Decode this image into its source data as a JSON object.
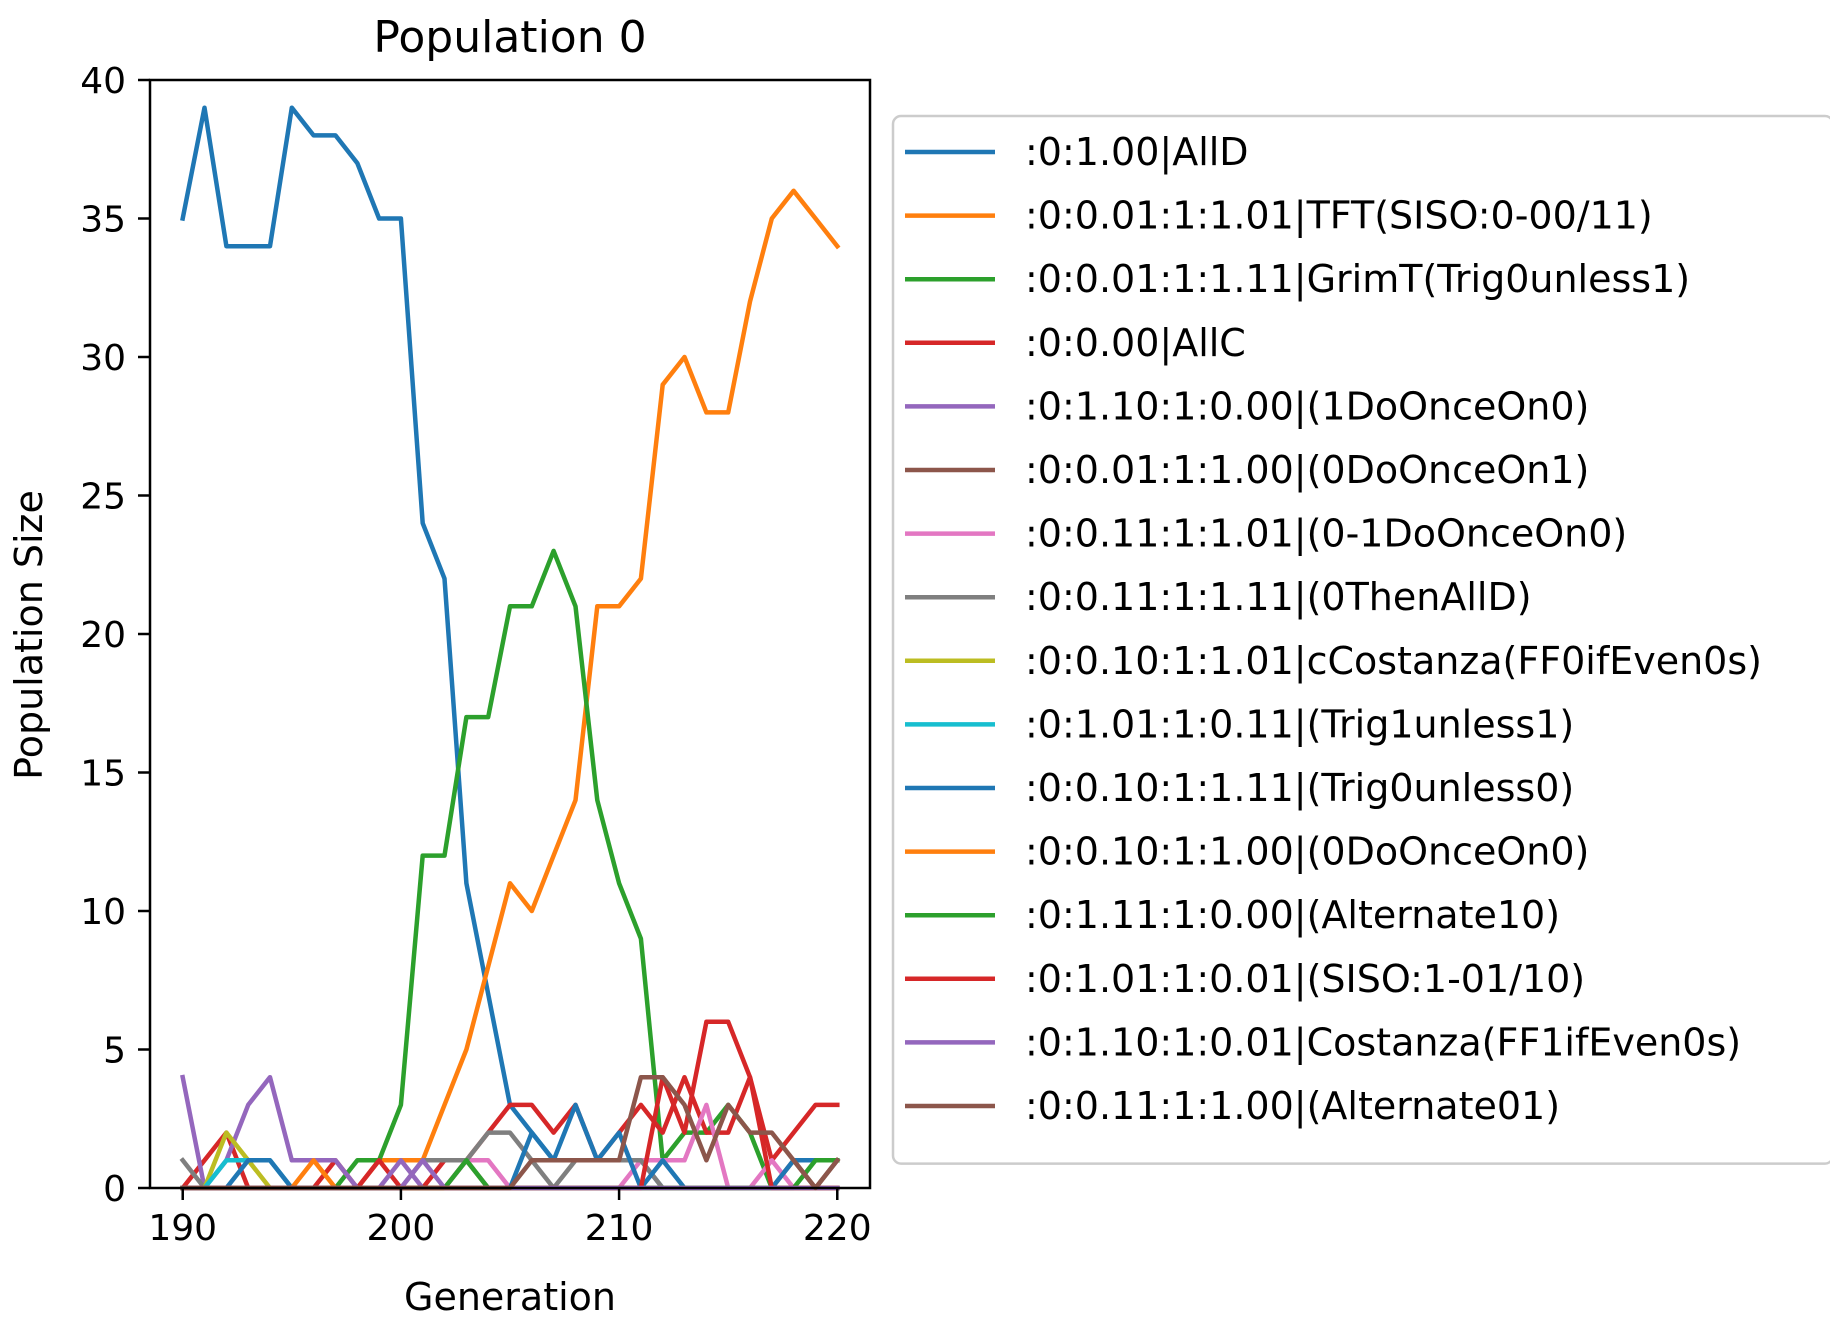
{
  "chart_data": {
    "type": "line",
    "title": "Population 0",
    "xlabel": "Generation",
    "ylabel": "Population Size",
    "xlim": [
      188.5,
      221.5
    ],
    "ylim": [
      0,
      40
    ],
    "xticks": [
      "190",
      "200",
      "210",
      "220"
    ],
    "yticks": [
      "0",
      "5",
      "10",
      "15",
      "20",
      "25",
      "30",
      "35",
      "40"
    ],
    "legend_position": "outside-right",
    "grid": false,
    "x": [
      190,
      191,
      192,
      193,
      194,
      195,
      196,
      197,
      198,
      199,
      200,
      201,
      202,
      203,
      204,
      205,
      206,
      207,
      208,
      209,
      210,
      211,
      212,
      213,
      214,
      215,
      216,
      217,
      218,
      219,
      220
    ],
    "series": [
      {
        "name": ":0:1.00|AllD",
        "color": "#1f77b4",
        "values": [
          35,
          39,
          34,
          34,
          34,
          39,
          38,
          38,
          37,
          35,
          35,
          24,
          22,
          11,
          7,
          3,
          2,
          1,
          1,
          1,
          1,
          1,
          0,
          0,
          0,
          0,
          0,
          0,
          0,
          0,
          0
        ]
      },
      {
        "name": ":0:0.01:1:1.01|TFT(SISO:0-00/11)",
        "color": "#ff7f0e",
        "values": [
          0,
          0,
          0,
          0,
          0,
          0,
          0,
          0,
          0,
          1,
          1,
          1,
          3,
          5,
          8,
          11,
          10,
          12,
          14,
          21,
          21,
          22,
          29,
          30,
          28,
          28,
          32,
          35,
          36,
          35,
          34
        ]
      },
      {
        "name": ":0:0.01:1:1.11|GrimT(Trig0unless1)",
        "color": "#2ca02c",
        "values": [
          0,
          0,
          0,
          0,
          0,
          0,
          0,
          0,
          1,
          1,
          3,
          12,
          12,
          17,
          17,
          21,
          21,
          23,
          21,
          14,
          11,
          9,
          1,
          2,
          2,
          3,
          2,
          0,
          0,
          0,
          0
        ]
      },
      {
        "name": ":0:0.00|AllC",
        "color": "#d62728",
        "values": [
          0,
          1,
          2,
          0,
          0,
          0,
          0,
          1,
          0,
          1,
          0,
          0,
          1,
          1,
          2,
          3,
          3,
          2,
          3,
          1,
          2,
          3,
          2,
          4,
          2,
          2,
          4,
          1,
          2,
          3,
          3
        ]
      },
      {
        "name": ":0:1.10:1:0.00|(1DoOnceOn0)",
        "color": "#9467bd",
        "values": [
          4,
          0,
          1,
          3,
          4,
          1,
          1,
          1,
          0,
          0,
          1,
          0,
          0,
          0,
          0,
          0,
          0,
          0,
          0,
          0,
          0,
          0,
          0,
          0,
          0,
          0,
          0,
          0,
          0,
          0,
          0
        ]
      },
      {
        "name": ":0:0.01:1:1.00|(0DoOnceOn1)",
        "color": "#8c564b",
        "values": [
          0,
          0,
          0,
          0,
          0,
          0,
          0,
          0,
          0,
          0,
          0,
          0,
          0,
          1,
          0,
          0,
          0,
          0,
          0,
          0,
          0,
          0,
          0,
          0,
          0,
          0,
          0,
          0,
          1,
          0,
          1
        ]
      },
      {
        "name": ":0:0.11:1:1.01|(0-1DoOnceOn0)",
        "color": "#e377c2",
        "values": [
          0,
          0,
          0,
          0,
          0,
          0,
          0,
          0,
          0,
          0,
          0,
          0,
          0,
          1,
          1,
          0,
          0,
          0,
          0,
          0,
          0,
          1,
          1,
          1,
          3,
          0,
          0,
          1,
          0,
          0,
          0
        ]
      },
      {
        "name": ":0:0.11:1:1.11|(0ThenAllD)",
        "color": "#7f7f7f",
        "values": [
          1,
          0,
          0,
          0,
          0,
          0,
          0,
          0,
          0,
          0,
          0,
          1,
          1,
          1,
          2,
          2,
          1,
          0,
          1,
          1,
          1,
          1,
          0,
          0,
          0,
          0,
          0,
          0,
          0,
          0,
          0
        ]
      },
      {
        "name": ":0:0.10:1:1.01|cCostanza(FF0ifEven0s)",
        "color": "#bcbd22",
        "values": [
          0,
          0,
          2,
          1,
          0,
          0,
          0,
          0,
          0,
          0,
          0,
          0,
          0,
          0,
          0,
          0,
          0,
          0,
          0,
          0,
          0,
          0,
          0,
          0,
          0,
          0,
          0,
          0,
          0,
          0,
          0
        ]
      },
      {
        "name": ":0:1.01:1:0.11|(Trig1unless1)",
        "color": "#17becf",
        "values": [
          0,
          0,
          1,
          1,
          1,
          0,
          0,
          0,
          0,
          0,
          0,
          0,
          0,
          0,
          0,
          0,
          0,
          0,
          0,
          0,
          0,
          0,
          0,
          0,
          0,
          0,
          0,
          0,
          0,
          0,
          0
        ]
      },
      {
        "name": ":0:0.10:1:1.11|(Trig0unless0)",
        "color": "#1f77b4",
        "values": [
          0,
          0,
          0,
          1,
          1,
          0,
          0,
          0,
          0,
          0,
          0,
          0,
          0,
          0,
          0,
          0,
          2,
          1,
          3,
          1,
          2,
          0,
          1,
          0,
          0,
          0,
          0,
          0,
          1,
          1,
          1
        ]
      },
      {
        "name": ":0:0.10:1:1.00|(0DoOnceOn0)",
        "color": "#ff7f0e",
        "values": [
          0,
          0,
          0,
          0,
          0,
          0,
          1,
          0,
          0,
          0,
          0,
          0,
          0,
          0,
          0,
          0,
          0,
          0,
          0,
          0,
          0,
          0,
          0,
          0,
          0,
          0,
          0,
          0,
          0,
          0,
          0
        ]
      },
      {
        "name": ":0:1.11:1:0.00|(Alternate10)",
        "color": "#2ca02c",
        "values": [
          0,
          0,
          0,
          0,
          0,
          0,
          0,
          0,
          0,
          0,
          0,
          0,
          0,
          1,
          0,
          0,
          0,
          0,
          0,
          0,
          0,
          0,
          0,
          0,
          0,
          0,
          0,
          0,
          0,
          1,
          1
        ]
      },
      {
        "name": ":0:1.01:1:0.01|(SISO:1-01/10)",
        "color": "#d62728",
        "values": [
          0,
          0,
          0,
          0,
          0,
          0,
          0,
          0,
          0,
          0,
          0,
          0,
          0,
          0,
          0,
          0,
          0,
          0,
          0,
          0,
          0,
          0,
          4,
          2,
          6,
          6,
          4,
          0,
          0,
          0,
          0
        ]
      },
      {
        "name": ":0:1.10:1:0.01|Costanza(FF1ifEven0s)",
        "color": "#9467bd",
        "values": [
          0,
          0,
          0,
          0,
          0,
          0,
          0,
          0,
          0,
          0,
          0,
          1,
          0,
          0,
          0,
          0,
          0,
          0,
          0,
          0,
          0,
          0,
          0,
          0,
          0,
          0,
          0,
          0,
          0,
          0,
          0
        ]
      },
      {
        "name": ":0:0.11:1:1.00|(Alternate01)",
        "color": "#8c564b",
        "values": [
          0,
          0,
          0,
          0,
          0,
          0,
          0,
          0,
          0,
          0,
          0,
          0,
          0,
          0,
          0,
          0,
          1,
          1,
          1,
          1,
          1,
          4,
          4,
          3,
          1,
          3,
          2,
          2,
          1,
          0,
          1
        ]
      }
    ]
  }
}
